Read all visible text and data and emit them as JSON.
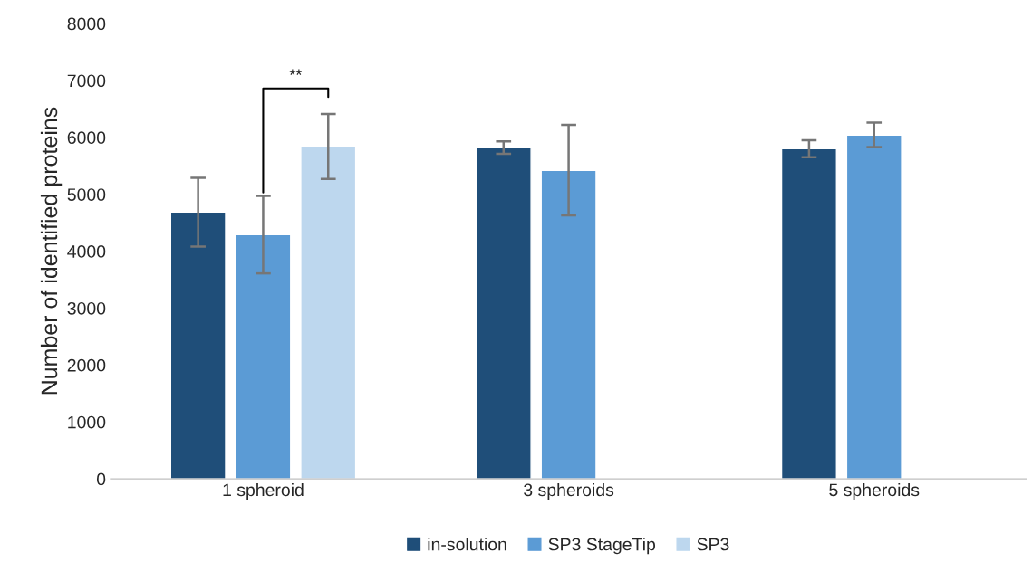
{
  "chart_data": {
    "type": "bar",
    "ylabel": "Number of identified proteins",
    "categories": [
      "1 spheroid",
      "3 spheroids",
      "5 spheroids"
    ],
    "series": [
      {
        "name": "in-solution",
        "color": "#1f4e79",
        "values": [
          4690,
          5820,
          5800
        ],
        "errors": [
          [
            4080,
            5290
          ],
          [
            5710,
            5930
          ],
          [
            5650,
            5950
          ]
        ]
      },
      {
        "name": "SP3 StageTip",
        "color": "#5b9bd5",
        "values": [
          4290,
          5420,
          6040
        ],
        "errors": [
          [
            3610,
            4970
          ],
          [
            4630,
            6220
          ],
          [
            5830,
            6260
          ]
        ]
      },
      {
        "name": "SP3",
        "color": "#bdd7ee",
        "values": [
          5850,
          null,
          null
        ],
        "errors": [
          [
            5270,
            6410
          ],
          null,
          null
        ]
      }
    ],
    "ylim": [
      0,
      8000
    ],
    "yticks": [
      0,
      1000,
      2000,
      3000,
      4000,
      5000,
      6000,
      7000,
      8000
    ],
    "grid": false,
    "legend": "bottom",
    "annotations": [
      "**"
    ]
  }
}
